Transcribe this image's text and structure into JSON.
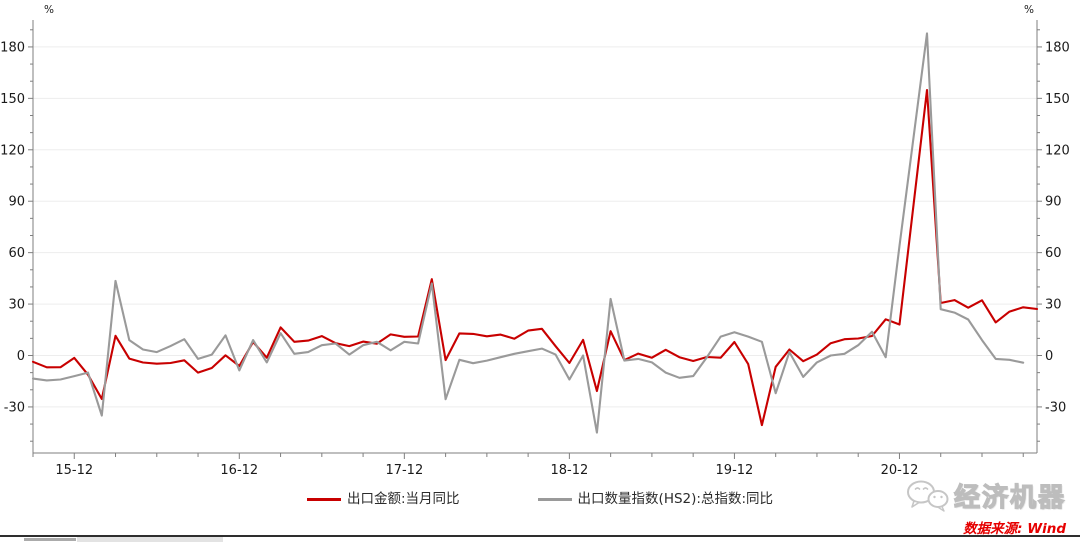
{
  "chart_data": {
    "type": "line",
    "title": "",
    "unit_label": "%",
    "xlabel": "",
    "ylabel": "%",
    "x_tick_labels": [
      "15-12",
      "16-12",
      "17-12",
      "18-12",
      "19-12",
      "20-12"
    ],
    "y_ticks": [
      -30,
      0,
      30,
      60,
      90,
      120,
      150,
      180
    ],
    "ylim": [
      -57,
      196
    ],
    "grid": true,
    "legend_position": "bottom",
    "months": [
      "2015-09",
      "2015-10",
      "2015-11",
      "2015-12",
      "2016-01",
      "2016-02",
      "2016-03",
      "2016-04",
      "2016-05",
      "2016-06",
      "2016-07",
      "2016-08",
      "2016-09",
      "2016-10",
      "2016-11",
      "2016-12",
      "2017-01",
      "2017-02",
      "2017-03",
      "2017-04",
      "2017-05",
      "2017-06",
      "2017-07",
      "2017-08",
      "2017-09",
      "2017-10",
      "2017-11",
      "2017-12",
      "2018-01",
      "2018-02",
      "2018-03",
      "2018-04",
      "2018-05",
      "2018-06",
      "2018-07",
      "2018-08",
      "2018-09",
      "2018-10",
      "2018-11",
      "2018-12",
      "2019-01",
      "2019-02",
      "2019-03",
      "2019-04",
      "2019-05",
      "2019-06",
      "2019-07",
      "2019-08",
      "2019-09",
      "2019-10",
      "2019-11",
      "2019-12",
      "2020-01",
      "2020-02",
      "2020-03",
      "2020-04",
      "2020-05",
      "2020-06",
      "2020-07",
      "2020-08",
      "2020-09",
      "2020-10",
      "2020-11",
      "2020-12",
      "2021-01",
      "2021-02",
      "2021-03",
      "2021-04",
      "2021-05",
      "2021-06",
      "2021-07",
      "2021-08",
      "2021-09",
      "2021-10"
    ],
    "series": [
      {
        "name": "出口金额:当月同比",
        "color": "#c80000",
        "values": [
          -3.7,
          -6.9,
          -6.8,
          -1.4,
          -11.2,
          -25.4,
          11.5,
          -1.8,
          -4.1,
          -4.8,
          -4.4,
          -2.8,
          -10.0,
          -7.3,
          0.1,
          -6.1,
          7.9,
          -1.3,
          16.4,
          8.0,
          8.7,
          11.3,
          7.2,
          5.5,
          8.1,
          6.9,
          12.3,
          10.9,
          11.1,
          44.5,
          -2.7,
          12.9,
          12.6,
          11.2,
          12.2,
          9.8,
          14.5,
          15.6,
          5.4,
          -4.4,
          9.1,
          -20.7,
          14.2,
          -2.7,
          1.1,
          -1.3,
          3.3,
          -1.0,
          -3.2,
          -0.9,
          -1.3,
          7.9,
          -5.0,
          -40.6,
          -6.6,
          3.5,
          -3.3,
          0.5,
          7.2,
          9.5,
          9.9,
          11.4,
          21.1,
          18.1,
          null,
          154.9,
          30.6,
          32.3,
          27.9,
          32.2,
          19.3,
          25.6,
          28.1,
          27.1
        ]
      },
      {
        "name": "出口数量指数(HS2):总指数:同比",
        "color": "#9a9a9a",
        "values": [
          -13.5,
          -14.5,
          -14.0,
          -12.0,
          -10.0,
          -35.0,
          43.5,
          9.0,
          3.5,
          2.0,
          5.5,
          9.5,
          -2.0,
          0.5,
          11.8,
          -8.7,
          9.0,
          -4.0,
          13.0,
          1.0,
          2.0,
          6.0,
          7.0,
          0.5,
          6.0,
          8.0,
          3.0,
          8.0,
          7.0,
          42.0,
          -25.5,
          -2.5,
          -4.5,
          -3.0,
          -1.0,
          1.0,
          2.5,
          4.0,
          0.5,
          -14.0,
          0.0,
          -45.0,
          33.0,
          -3.0,
          -2.0,
          -4.0,
          -10.0,
          -13.0,
          -12.0,
          -1.0,
          11.0,
          13.6,
          11.0,
          8.0,
          -22.0,
          2.0,
          -12.5,
          -4.0,
          0.0,
          1.0,
          6.0,
          13.8,
          -1.0,
          64.0,
          null,
          187.9,
          27.0,
          25.0,
          21.0,
          9.0,
          -2.0,
          -2.5,
          -4.2,
          null
        ]
      }
    ]
  },
  "legend": {
    "items": [
      {
        "label": "出口金额:当月同比",
        "color": "#c80000"
      },
      {
        "label": "出口数量指数(HS2):总指数:同比",
        "color": "#9a9a9a"
      }
    ]
  },
  "branding": {
    "name": "经济机器"
  },
  "source": {
    "text": "数据来源: Wind"
  }
}
